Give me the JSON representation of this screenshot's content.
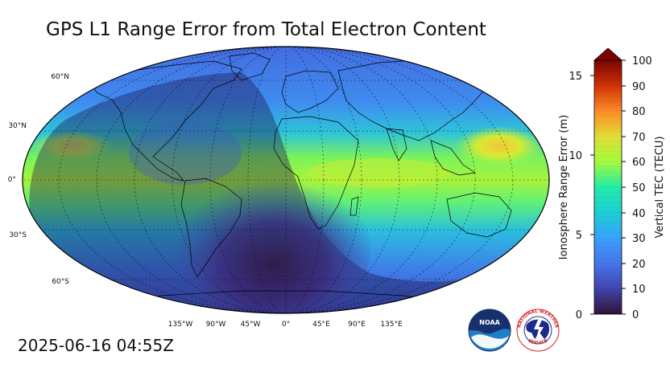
{
  "title": "GPS L1 Range Error from Total Electron Content",
  "timestamp": "2025-06-16 04:55Z",
  "map": {
    "lat_labels": [
      "60°N",
      "30°N",
      "0°",
      "30°S",
      "60°S"
    ],
    "lon_labels": [
      "135°W",
      "90°W",
      "45°W",
      "0°",
      "45°E",
      "90°E",
      "135°E"
    ]
  },
  "colorbar": {
    "left_label": "Ionosphere Range Error (m)",
    "right_label": "Vertical TEC (TECU)",
    "left_ticks": [
      "0",
      "5",
      "10",
      "15"
    ],
    "right_ticks": [
      "0",
      "10",
      "20",
      "30",
      "40",
      "50",
      "60",
      "70",
      "80",
      "90",
      "100"
    ],
    "extend": "max",
    "colormap": [
      "#30123b",
      "#4662d7",
      "#36a9f9",
      "#1ae4b6",
      "#72fe5e",
      "#c8ef34",
      "#faba39",
      "#f66b19",
      "#ca2a04",
      "#7a0403"
    ]
  },
  "logos": {
    "noaa": "NOAA",
    "nws_top": "NATIONAL WEATHER",
    "nws_bottom": "SERVICE"
  }
}
